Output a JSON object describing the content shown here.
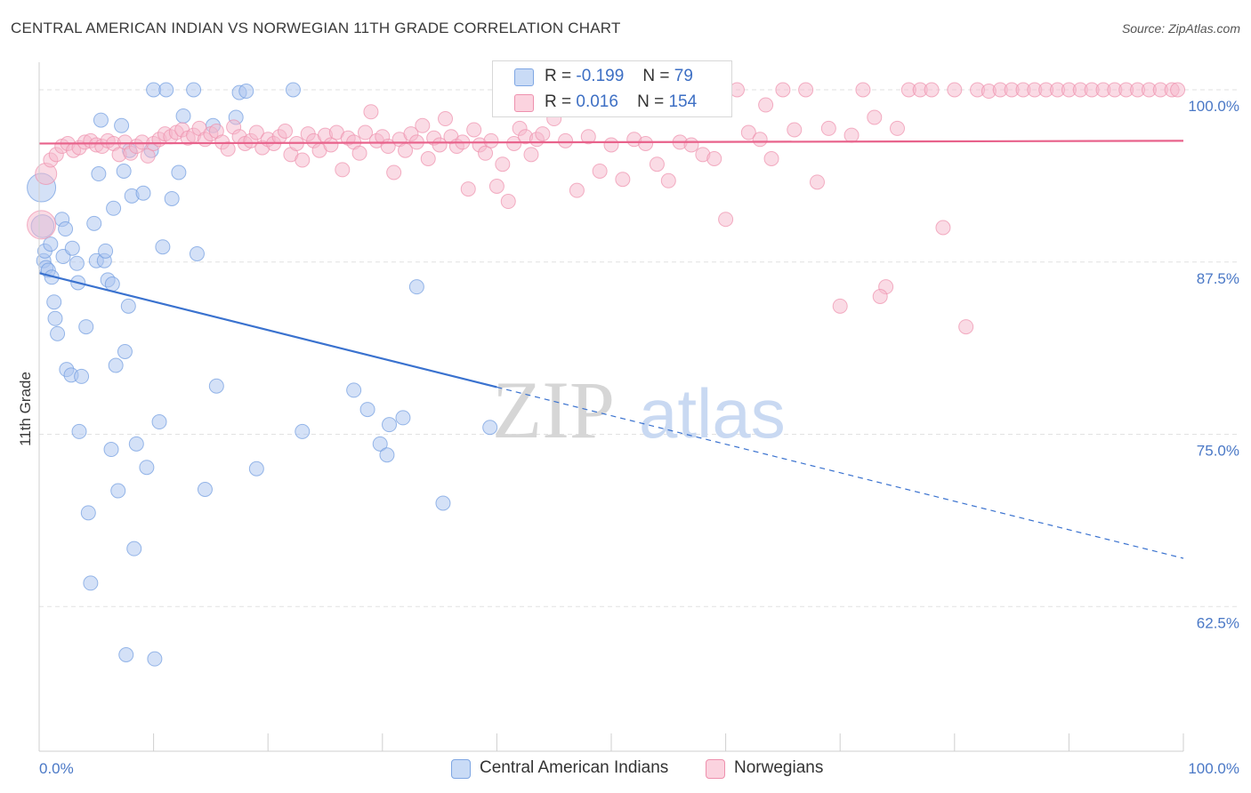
{
  "title": "CENTRAL AMERICAN INDIAN VS NORWEGIAN 11TH GRADE CORRELATION CHART",
  "source": "Source: ZipAtlas.com",
  "watermark": {
    "zip": "ZIP",
    "atlas": "atlas"
  },
  "legend_top": {
    "rows": [
      {
        "r_label": "R =",
        "r_value": "-0.199",
        "n_label": "N =",
        "n_value": "79",
        "color": "#a9c4ef"
      },
      {
        "r_label": "R =",
        "r_value": "0.016",
        "n_label": "N =",
        "n_value": "154",
        "color": "#f6b8cb"
      }
    ]
  },
  "legend_bottom": [
    {
      "label": "Central American Indians",
      "color": "#a9c4ef"
    },
    {
      "label": "Norwegians",
      "color": "#f6b8cb"
    }
  ],
  "chart_data": {
    "type": "scatter",
    "title": "CENTRAL AMERICAN INDIAN VS NORWEGIAN 11TH GRADE CORRELATION CHART",
    "xlabel": "",
    "ylabel": "11th Grade",
    "xlim": [
      0,
      100
    ],
    "ylim": [
      52,
      102
    ],
    "x_tick_labels": [
      "0.0%",
      "100.0%"
    ],
    "y_ticks": [
      62.5,
      75.0,
      87.5,
      100.0
    ],
    "y_tick_labels": [
      "62.5%",
      "75.0%",
      "87.5%",
      "100.0%"
    ],
    "grid": true,
    "legend": "bottom-center",
    "series": [
      {
        "name": "Central American Indians",
        "color": "#a9c4ef",
        "stroke": "#6f9be0",
        "trend": {
          "x0": 0,
          "y0": 86.7,
          "x1": 100,
          "y1": 66.0,
          "solid_until": 40
        },
        "points": [
          [
            0.2,
            92.9,
            2
          ],
          [
            0.3,
            90.1,
            1.6
          ],
          [
            0.4,
            87.6,
            1
          ],
          [
            0.5,
            88.3,
            1
          ],
          [
            0.6,
            87.1,
            1
          ],
          [
            0.8,
            86.9,
            1
          ],
          [
            1.0,
            88.8,
            1
          ],
          [
            1.1,
            86.4,
            1
          ],
          [
            1.3,
            84.6,
            1
          ],
          [
            1.4,
            83.4,
            1
          ],
          [
            1.6,
            82.3,
            1
          ],
          [
            2.0,
            90.6,
            1
          ],
          [
            2.1,
            87.9,
            1
          ],
          [
            2.3,
            89.9,
            1
          ],
          [
            2.4,
            79.7,
            1
          ],
          [
            2.8,
            79.3,
            1
          ],
          [
            2.9,
            88.5,
            1
          ],
          [
            3.3,
            87.4,
            1
          ],
          [
            3.4,
            86.0,
            1
          ],
          [
            3.5,
            75.2,
            1
          ],
          [
            3.7,
            79.2,
            1
          ],
          [
            4.1,
            82.8,
            1
          ],
          [
            4.3,
            69.3,
            1
          ],
          [
            4.5,
            64.2,
            1
          ],
          [
            4.8,
            90.3,
            1
          ],
          [
            5.0,
            87.6,
            1
          ],
          [
            5.2,
            93.9,
            1
          ],
          [
            5.4,
            97.8,
            1
          ],
          [
            5.7,
            87.6,
            1
          ],
          [
            5.8,
            88.3,
            1
          ],
          [
            6.0,
            86.2,
            1
          ],
          [
            6.3,
            73.9,
            1
          ],
          [
            6.4,
            85.9,
            1
          ],
          [
            6.5,
            91.4,
            1
          ],
          [
            6.7,
            80.0,
            1
          ],
          [
            6.9,
            70.9,
            1
          ],
          [
            7.2,
            97.4,
            1
          ],
          [
            7.4,
            94.1,
            1
          ],
          [
            7.5,
            81.0,
            1
          ],
          [
            7.6,
            59.0,
            1
          ],
          [
            7.8,
            84.3,
            1
          ],
          [
            7.9,
            95.6,
            1
          ],
          [
            8.1,
            92.3,
            1
          ],
          [
            8.3,
            66.7,
            1
          ],
          [
            8.5,
            74.3,
            1
          ],
          [
            9.1,
            92.5,
            1
          ],
          [
            9.4,
            72.6,
            1
          ],
          [
            9.8,
            95.6,
            1
          ],
          [
            10.0,
            100.0,
            1
          ],
          [
            10.1,
            58.7,
            1
          ],
          [
            10.5,
            75.9,
            1
          ],
          [
            10.8,
            88.6,
            1
          ],
          [
            11.1,
            100.0,
            1
          ],
          [
            11.6,
            92.1,
            1
          ],
          [
            12.2,
            94.0,
            1
          ],
          [
            12.6,
            98.1,
            1
          ],
          [
            13.5,
            100.0,
            1
          ],
          [
            13.8,
            88.1,
            1
          ],
          [
            14.5,
            71.0,
            1
          ],
          [
            15.2,
            97.4,
            1
          ],
          [
            15.5,
            78.5,
            1
          ],
          [
            17.2,
            98.0,
            1
          ],
          [
            17.5,
            99.8,
            1
          ],
          [
            18.1,
            99.9,
            1
          ],
          [
            19.0,
            72.5,
            1
          ],
          [
            22.2,
            100.0,
            1
          ],
          [
            23.0,
            75.2,
            1
          ],
          [
            27.5,
            78.2,
            1
          ],
          [
            28.7,
            76.8,
            1
          ],
          [
            29.8,
            74.3,
            1
          ],
          [
            30.4,
            73.5,
            1
          ],
          [
            30.6,
            75.7,
            1
          ],
          [
            31.8,
            76.2,
            1
          ],
          [
            33.0,
            85.7,
            1
          ],
          [
            35.3,
            70.0,
            1
          ],
          [
            39.4,
            75.5,
            1
          ]
        ]
      },
      {
        "name": "Norwegians",
        "color": "#f6b8cb",
        "stroke": "#ee90ad",
        "trend": {
          "x0": 0,
          "y0": 96.1,
          "x1": 100,
          "y1": 96.3,
          "solid_until": 100
        },
        "points": [
          [
            0.2,
            90.2,
            2
          ],
          [
            0.6,
            93.9,
            1.5
          ],
          [
            1.0,
            94.9,
            1
          ],
          [
            1.5,
            95.3,
            1
          ],
          [
            2.0,
            95.9,
            1
          ],
          [
            2.5,
            96.1,
            1
          ],
          [
            3.0,
            95.6,
            1
          ],
          [
            3.5,
            95.8,
            1
          ],
          [
            4.0,
            96.2,
            1
          ],
          [
            4.5,
            96.3,
            1
          ],
          [
            5.0,
            96.0,
            1
          ],
          [
            5.5,
            95.9,
            1
          ],
          [
            6.0,
            96.3,
            1
          ],
          [
            6.5,
            96.1,
            1
          ],
          [
            7.0,
            95.3,
            1
          ],
          [
            7.5,
            96.2,
            1
          ],
          [
            8.0,
            95.4,
            1
          ],
          [
            8.5,
            95.9,
            1
          ],
          [
            9.0,
            96.2,
            1
          ],
          [
            9.5,
            95.2,
            1
          ],
          [
            10.0,
            96.1,
            1
          ],
          [
            10.5,
            96.4,
            1
          ],
          [
            11.0,
            96.8,
            1
          ],
          [
            11.5,
            96.6,
            1
          ],
          [
            12.0,
            96.9,
            1
          ],
          [
            12.5,
            97.1,
            1
          ],
          [
            13.0,
            96.5,
            1
          ],
          [
            13.5,
            96.7,
            1
          ],
          [
            14.0,
            97.2,
            1
          ],
          [
            14.5,
            96.4,
            1
          ],
          [
            15.0,
            96.8,
            1
          ],
          [
            15.5,
            97.0,
            1
          ],
          [
            16.0,
            96.2,
            1
          ],
          [
            16.5,
            95.7,
            1
          ],
          [
            17.0,
            97.3,
            1
          ],
          [
            17.5,
            96.6,
            1
          ],
          [
            18.0,
            96.1,
            1
          ],
          [
            18.5,
            96.3,
            1
          ],
          [
            19.0,
            96.9,
            1
          ],
          [
            19.5,
            95.8,
            1
          ],
          [
            20.0,
            96.4,
            1
          ],
          [
            20.5,
            96.1,
            1
          ],
          [
            21.0,
            96.6,
            1
          ],
          [
            21.5,
            97.0,
            1
          ],
          [
            22.0,
            95.3,
            1
          ],
          [
            22.5,
            96.1,
            1
          ],
          [
            23.0,
            94.9,
            1
          ],
          [
            23.5,
            96.8,
            1
          ],
          [
            24.0,
            96.3,
            1
          ],
          [
            24.5,
            95.6,
            1
          ],
          [
            25.0,
            96.7,
            1
          ],
          [
            25.5,
            96.0,
            1
          ],
          [
            26.0,
            96.9,
            1
          ],
          [
            26.5,
            94.2,
            1
          ],
          [
            27.0,
            96.5,
            1
          ],
          [
            27.5,
            96.2,
            1
          ],
          [
            28.0,
            95.4,
            1
          ],
          [
            28.5,
            96.9,
            1
          ],
          [
            29.0,
            98.4,
            1
          ],
          [
            29.5,
            96.3,
            1
          ],
          [
            30.0,
            96.6,
            1
          ],
          [
            30.5,
            95.9,
            1
          ],
          [
            31.0,
            94.0,
            1
          ],
          [
            31.5,
            96.4,
            1
          ],
          [
            32.0,
            95.6,
            1
          ],
          [
            32.5,
            96.8,
            1
          ],
          [
            33.0,
            96.2,
            1
          ],
          [
            33.5,
            97.4,
            1
          ],
          [
            34.0,
            95.0,
            1
          ],
          [
            34.5,
            96.5,
            1
          ],
          [
            35.0,
            96.0,
            1
          ],
          [
            35.5,
            97.9,
            1
          ],
          [
            36.0,
            96.6,
            1
          ],
          [
            36.5,
            95.9,
            1
          ],
          [
            37.0,
            96.2,
            1
          ],
          [
            37.5,
            92.8,
            1
          ],
          [
            38.0,
            97.1,
            1
          ],
          [
            38.5,
            96.0,
            1
          ],
          [
            39.0,
            95.4,
            1
          ],
          [
            39.5,
            96.3,
            1
          ],
          [
            40.0,
            93.0,
            1
          ],
          [
            40.5,
            94.6,
            1
          ],
          [
            41.0,
            91.9,
            1
          ],
          [
            41.5,
            96.1,
            1
          ],
          [
            42.0,
            97.2,
            1
          ],
          [
            42.5,
            96.6,
            1
          ],
          [
            43.0,
            95.3,
            1
          ],
          [
            43.5,
            96.4,
            1
          ],
          [
            44.0,
            96.8,
            1
          ],
          [
            45.0,
            97.9,
            1
          ],
          [
            46.0,
            96.3,
            1
          ],
          [
            47.0,
            92.7,
            1
          ],
          [
            48.0,
            96.6,
            1
          ],
          [
            49.0,
            94.1,
            1
          ],
          [
            50.0,
            96.0,
            1
          ],
          [
            51.0,
            93.5,
            1
          ],
          [
            52.0,
            96.4,
            1
          ],
          [
            53.0,
            96.1,
            1
          ],
          [
            54.0,
            94.6,
            1
          ],
          [
            55.0,
            93.4,
            1
          ],
          [
            56.0,
            96.2,
            1
          ],
          [
            57.0,
            96.0,
            1
          ],
          [
            58.0,
            95.3,
            1
          ],
          [
            59.0,
            95.0,
            1
          ],
          [
            60.0,
            90.6,
            1
          ],
          [
            61.0,
            100.0,
            1
          ],
          [
            62.0,
            96.9,
            1
          ],
          [
            63.0,
            96.4,
            1
          ],
          [
            64.0,
            95.0,
            1
          ],
          [
            65.0,
            100.0,
            1
          ],
          [
            66.0,
            97.1,
            1
          ],
          [
            67.0,
            100.0,
            1
          ],
          [
            68.0,
            93.3,
            1
          ],
          [
            69.0,
            97.2,
            1
          ],
          [
            70.0,
            84.3,
            1
          ],
          [
            71.0,
            96.7,
            1
          ],
          [
            72.0,
            100.0,
            1
          ],
          [
            73.0,
            98.0,
            1
          ],
          [
            74.0,
            85.7,
            1
          ],
          [
            75.0,
            97.2,
            1
          ],
          [
            76.0,
            100.0,
            1
          ],
          [
            77.0,
            100.0,
            1
          ],
          [
            78.0,
            100.0,
            1
          ],
          [
            79.0,
            90.0,
            1
          ],
          [
            80.0,
            100.0,
            1
          ],
          [
            81.0,
            82.8,
            1
          ],
          [
            82.0,
            100.0,
            1
          ],
          [
            83.0,
            99.9,
            1
          ],
          [
            84.0,
            100.0,
            1
          ],
          [
            85.0,
            100.0,
            1
          ],
          [
            86.0,
            100.0,
            1
          ],
          [
            87.0,
            100.0,
            1
          ],
          [
            88.0,
            100.0,
            1
          ],
          [
            89.0,
            100.0,
            1
          ],
          [
            90.0,
            100.0,
            1
          ],
          [
            91.0,
            100.0,
            1
          ],
          [
            92.0,
            100.0,
            1
          ],
          [
            93.0,
            100.0,
            1
          ],
          [
            94.0,
            100.0,
            1
          ],
          [
            95.0,
            100.0,
            1
          ],
          [
            96.0,
            100.0,
            1
          ],
          [
            97.0,
            100.0,
            1
          ],
          [
            98.0,
            100.0,
            1
          ],
          [
            99.0,
            100.0,
            1
          ],
          [
            99.5,
            100.0,
            1
          ],
          [
            73.5,
            85.0,
            1
          ],
          [
            63.5,
            98.9,
            1
          ]
        ]
      }
    ]
  }
}
